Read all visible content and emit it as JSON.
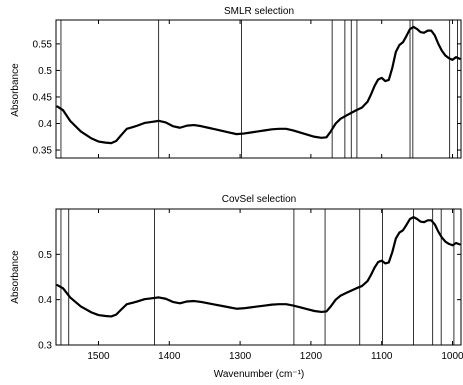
{
  "chart_data": [
    {
      "type": "line",
      "title": "SMLR selection",
      "xlabel": "",
      "ylabel": "Absorbance",
      "xlim": [
        1560,
        988
      ],
      "ylim": [
        0.335,
        0.595
      ],
      "x_reversed": true,
      "xticks": [
        1500,
        1400,
        1300,
        1200,
        1100,
        1000
      ],
      "xtick_labels": [
        "",
        "",
        "",
        "",
        "",
        ""
      ],
      "yticks": [
        0.35,
        0.4,
        0.45,
        0.5,
        0.55
      ],
      "ytick_labels": [
        "0.35",
        "0.4",
        "0.45",
        "0.5",
        "0.55"
      ],
      "grid": false,
      "line_color": "#000000",
      "selection_line_color": "#000000",
      "series": [
        {
          "x": [
            1558,
            1550,
            1540,
            1525,
            1510,
            1500,
            1490,
            1482,
            1475,
            1468,
            1460,
            1452,
            1445,
            1435,
            1425,
            1415,
            1405,
            1395,
            1385,
            1375,
            1365,
            1355,
            1345,
            1335,
            1325,
            1315,
            1305,
            1295,
            1285,
            1275,
            1265,
            1255,
            1245,
            1235,
            1225,
            1215,
            1205,
            1195,
            1185,
            1178,
            1172,
            1165,
            1158,
            1150,
            1143,
            1136,
            1128,
            1120,
            1115,
            1110,
            1105,
            1100,
            1095,
            1090,
            1085,
            1080,
            1075,
            1070,
            1065,
            1060,
            1055,
            1050,
            1045,
            1040,
            1035,
            1030,
            1025,
            1020,
            1015,
            1010,
            1005,
            1000,
            995,
            990
          ],
          "y": [
            0.432,
            0.425,
            0.405,
            0.385,
            0.372,
            0.366,
            0.364,
            0.363,
            0.367,
            0.378,
            0.39,
            0.393,
            0.396,
            0.401,
            0.403,
            0.405,
            0.402,
            0.395,
            0.392,
            0.396,
            0.397,
            0.395,
            0.392,
            0.389,
            0.386,
            0.383,
            0.38,
            0.381,
            0.383,
            0.385,
            0.387,
            0.389,
            0.39,
            0.39,
            0.387,
            0.383,
            0.379,
            0.375,
            0.373,
            0.374,
            0.385,
            0.4,
            0.409,
            0.415,
            0.42,
            0.425,
            0.43,
            0.441,
            0.455,
            0.471,
            0.483,
            0.486,
            0.48,
            0.482,
            0.505,
            0.535,
            0.548,
            0.553,
            0.565,
            0.578,
            0.582,
            0.578,
            0.572,
            0.571,
            0.575,
            0.575,
            0.566,
            0.55,
            0.537,
            0.528,
            0.523,
            0.52,
            0.525,
            0.522
          ]
        }
      ],
      "selected_wavenumbers": [
        1553,
        1415,
        1298,
        1170,
        1152,
        1143,
        1135,
        1060,
        1056,
        1004,
        993
      ]
    },
    {
      "type": "line",
      "title": "CovSel selection",
      "xlabel": "Wavenumber (cm⁻¹)",
      "ylabel": "Absorbance",
      "xlim": [
        1560,
        988
      ],
      "ylim": [
        0.3,
        0.6
      ],
      "x_reversed": true,
      "xticks": [
        1500,
        1400,
        1300,
        1200,
        1100,
        1000
      ],
      "xtick_labels": [
        "1500",
        "1400",
        "1300",
        "1200",
        "1100",
        "1000"
      ],
      "yticks": [
        0.3,
        0.4,
        0.5
      ],
      "ytick_labels": [
        "0.3",
        "0.4",
        "0.5"
      ],
      "grid": false,
      "line_color": "#000000",
      "selection_line_color": "#000000",
      "series": [
        {
          "x": [
            1558,
            1550,
            1540,
            1525,
            1510,
            1500,
            1490,
            1482,
            1475,
            1468,
            1460,
            1452,
            1445,
            1435,
            1425,
            1415,
            1405,
            1395,
            1385,
            1375,
            1365,
            1355,
            1345,
            1335,
            1325,
            1315,
            1305,
            1295,
            1285,
            1275,
            1265,
            1255,
            1245,
            1235,
            1225,
            1215,
            1205,
            1195,
            1185,
            1178,
            1172,
            1165,
            1158,
            1150,
            1143,
            1136,
            1128,
            1120,
            1115,
            1110,
            1105,
            1100,
            1095,
            1090,
            1085,
            1080,
            1075,
            1070,
            1065,
            1060,
            1055,
            1050,
            1045,
            1040,
            1035,
            1030,
            1025,
            1020,
            1015,
            1010,
            1005,
            1000,
            995,
            990
          ],
          "y": [
            0.432,
            0.425,
            0.405,
            0.385,
            0.372,
            0.366,
            0.364,
            0.363,
            0.367,
            0.378,
            0.39,
            0.393,
            0.396,
            0.401,
            0.403,
            0.405,
            0.402,
            0.395,
            0.392,
            0.396,
            0.397,
            0.395,
            0.392,
            0.389,
            0.386,
            0.383,
            0.38,
            0.381,
            0.383,
            0.385,
            0.387,
            0.389,
            0.39,
            0.39,
            0.387,
            0.383,
            0.379,
            0.375,
            0.373,
            0.374,
            0.385,
            0.4,
            0.409,
            0.415,
            0.42,
            0.425,
            0.43,
            0.441,
            0.455,
            0.471,
            0.483,
            0.486,
            0.48,
            0.482,
            0.505,
            0.535,
            0.548,
            0.553,
            0.565,
            0.578,
            0.582,
            0.578,
            0.572,
            0.571,
            0.575,
            0.575,
            0.566,
            0.55,
            0.537,
            0.528,
            0.523,
            0.52,
            0.525,
            0.522
          ]
        }
      ],
      "selected_wavenumbers": [
        1553,
        1542,
        1421,
        1224,
        1180,
        1131,
        1099,
        1055,
        1028,
        1016,
        998
      ]
    }
  ]
}
